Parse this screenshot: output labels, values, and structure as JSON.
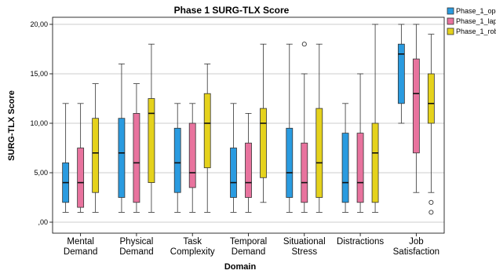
{
  "chart_data": {
    "type": "boxplot",
    "title": "Phase 1 SURG-TLX Score",
    "xlabel": "Domain",
    "ylabel": "SURG-TLX Score",
    "ylim": [
      0,
      20
    ],
    "yticks": [
      0,
      5,
      10,
      15,
      20
    ],
    "ytick_labels": [
      ",00",
      "5,00",
      "10,00",
      "15,00",
      "20,00"
    ],
    "grid": true,
    "legend_position": "top-right",
    "categories": [
      [
        "Mental",
        "Demand"
      ],
      [
        "Physical",
        "Demand"
      ],
      [
        "Task",
        "Complexity"
      ],
      [
        "Temporal",
        "Demand"
      ],
      [
        "Situational",
        "Stress"
      ],
      [
        "Distractions"
      ],
      [
        "Job",
        "Satisfaction"
      ]
    ],
    "series": [
      {
        "name": "Phase_1_ope",
        "color": "#2a9be0",
        "boxes": [
          {
            "min": 1,
            "q1": 2,
            "median": 4,
            "q3": 6,
            "max": 12,
            "outliers": []
          },
          {
            "min": 1,
            "q1": 2.5,
            "median": 7,
            "q3": 10.5,
            "max": 16,
            "outliers": []
          },
          {
            "min": 1,
            "q1": 3,
            "median": 6,
            "q3": 9.5,
            "max": 12,
            "outliers": []
          },
          {
            "min": 1,
            "q1": 2.5,
            "median": 4,
            "q3": 7.5,
            "max": 12,
            "outliers": []
          },
          {
            "min": 1,
            "q1": 2.5,
            "median": 5,
            "q3": 9.5,
            "max": 18,
            "outliers": []
          },
          {
            "min": 1,
            "q1": 2,
            "median": 4,
            "q3": 9,
            "max": 12,
            "outliers": []
          },
          {
            "min": 10,
            "q1": 12,
            "median": 17,
            "q3": 18,
            "max": 20,
            "outliers": []
          }
        ]
      },
      {
        "name": "Phase_1_lap",
        "color": "#e8739e",
        "boxes": [
          {
            "min": 1,
            "q1": 1.5,
            "median": 4,
            "q3": 7.5,
            "max": 12,
            "outliers": []
          },
          {
            "min": 1,
            "q1": 2,
            "median": 6,
            "q3": 11,
            "max": 14,
            "outliers": []
          },
          {
            "min": 1,
            "q1": 3.5,
            "median": 5,
            "q3": 10,
            "max": 12,
            "outliers": []
          },
          {
            "min": 1,
            "q1": 2.5,
            "median": 4,
            "q3": 8,
            "max": 11,
            "outliers": []
          },
          {
            "min": 1,
            "q1": 2,
            "median": 4,
            "q3": 8,
            "max": 15,
            "outliers": [
              18
            ]
          },
          {
            "min": 1,
            "q1": 2,
            "median": 4,
            "q3": 9,
            "max": 15,
            "outliers": []
          },
          {
            "min": 3,
            "q1": 7,
            "median": 13,
            "q3": 16.5,
            "max": 20,
            "outliers": []
          }
        ]
      },
      {
        "name": "Phase_1_rob",
        "color": "#e5d21c",
        "boxes": [
          {
            "min": 1,
            "q1": 3,
            "median": 7,
            "q3": 10.5,
            "max": 14,
            "outliers": []
          },
          {
            "min": 1,
            "q1": 4,
            "median": 11,
            "q3": 12.5,
            "max": 18,
            "outliers": []
          },
          {
            "min": 1,
            "q1": 5.5,
            "median": 10,
            "q3": 13,
            "max": 16,
            "outliers": []
          },
          {
            "min": 2,
            "q1": 4.5,
            "median": 10,
            "q3": 11.5,
            "max": 18,
            "outliers": []
          },
          {
            "min": 1,
            "q1": 2.5,
            "median": 6,
            "q3": 11.5,
            "max": 18,
            "outliers": []
          },
          {
            "min": 1,
            "q1": 2,
            "median": 7,
            "q3": 10,
            "max": 20,
            "outliers": []
          },
          {
            "min": 3,
            "q1": 10,
            "median": 12,
            "q3": 15,
            "max": 19,
            "outliers": [
              2,
              1
            ]
          }
        ]
      }
    ]
  }
}
